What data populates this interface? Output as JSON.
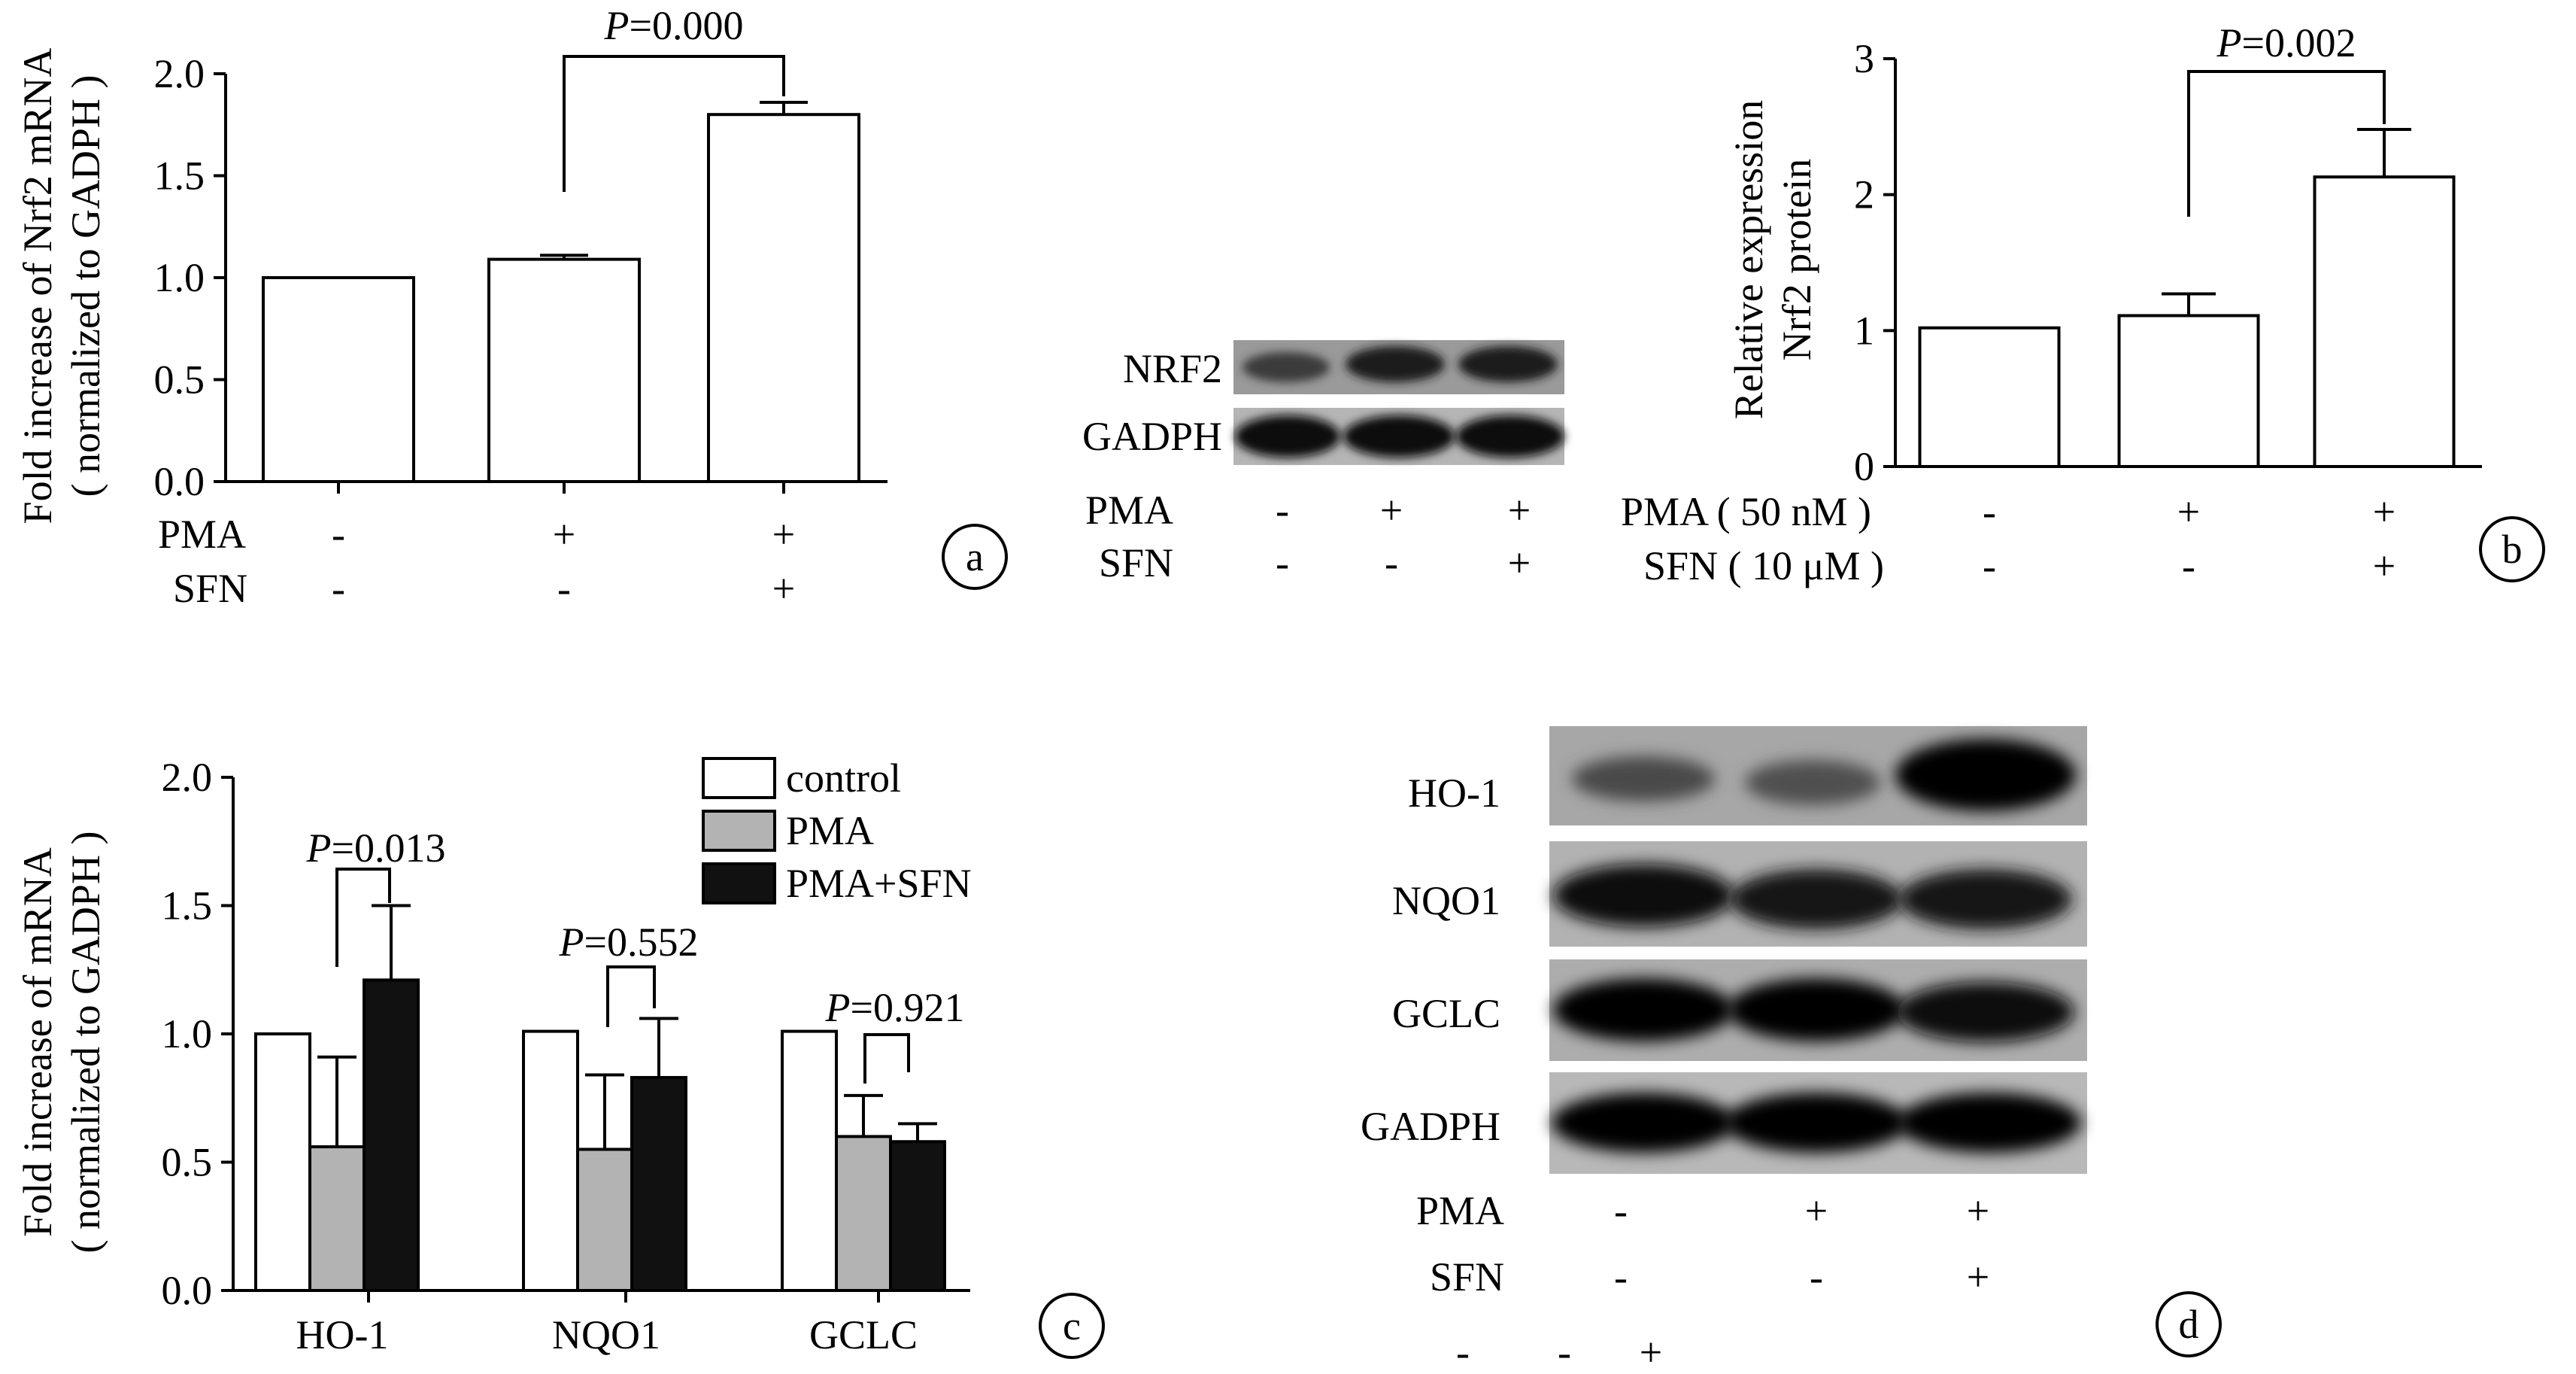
{
  "panel_a": {
    "panel_label": "a",
    "ylabel_line1": "Fold increase of  Nrf2 mRNA",
    "ylabel_line2": "( normalized to GADPH )",
    "yticks": [
      "0.0",
      "0.5",
      "1.0",
      "1.5",
      "2.0"
    ],
    "row1_label": "PMA",
    "row2_label": "SFN",
    "row1_marks": [
      "-",
      "+",
      "+"
    ],
    "row2_marks": [
      "-",
      "-",
      "+"
    ],
    "sig_p": "P",
    "sig_value": "=0.000"
  },
  "blot_nrf2": {
    "band_labels": [
      "NRF2",
      "GADPH"
    ],
    "row1_label": "PMA",
    "row2_label": "SFN",
    "row1_marks": [
      "-",
      "+",
      "+"
    ],
    "row2_marks": [
      "-",
      "-",
      "+"
    ]
  },
  "panel_b": {
    "panel_label": "b",
    "ylabel_line1": "Relative expression",
    "ylabel_line2": "Nrf2 protein",
    "yticks": [
      "0",
      "1",
      "2",
      "3"
    ],
    "row1_label": "PMA ( 50 nM )",
    "row2_label": "SFN ( 10 μM )",
    "row1_marks": [
      "-",
      "+",
      "+"
    ],
    "row2_marks": [
      "-",
      "-",
      "+"
    ],
    "sig_p": "P",
    "sig_value": "=0.002"
  },
  "panel_c": {
    "panel_label": "c",
    "ylabel_line1": "Fold increase of mRNA",
    "ylabel_line2": "( normalized to GADPH )",
    "yticks": [
      "0.0",
      "0.5",
      "1.0",
      "1.5",
      "2.0"
    ],
    "legend": [
      "control",
      "PMA",
      "PMA+SFN"
    ],
    "sig": [
      {
        "p": "P",
        "value": "=0.013"
      },
      {
        "p": "P",
        "value": "=0.552"
      },
      {
        "p": "P",
        "value": "=0.921"
      }
    ]
  },
  "panel_d": {
    "panel_label": "d",
    "band_labels": [
      "HO-1",
      "NQO1",
      "GCLC",
      "GADPH"
    ],
    "row1_label": "PMA",
    "row2_label": "SFN",
    "row1_marks": [
      "-",
      "+",
      "+"
    ],
    "row2_marks": [
      "-",
      "-",
      "+"
    ],
    "row3_marks": [
      "-",
      "-",
      "+"
    ]
  },
  "colors": {
    "control": "#ffffff",
    "pma": "#b3b3b3",
    "pma_sfn": "#111111",
    "axis": "#000000"
  },
  "chart_data": [
    {
      "type": "bar",
      "panel": "a",
      "categories": [
        "control",
        "PMA",
        "PMA+SFN"
      ],
      "values": [
        1.0,
        1.09,
        1.8
      ],
      "errors": [
        0,
        0.02,
        0.06
      ],
      "ylim": [
        0,
        2.0
      ],
      "ylabel": "Fold increase of  Nrf2 mRNA ( normalized to GADPH )"
    },
    {
      "type": "bar",
      "panel": "b",
      "categories": [
        "control",
        "PMA",
        "PMA+SFN"
      ],
      "values": [
        1.02,
        1.11,
        2.13
      ],
      "errors": [
        0,
        0.16,
        0.35
      ],
      "ylim": [
        0,
        3
      ],
      "ylabel": "Relative expression Nrf2 protein"
    },
    {
      "type": "bar",
      "panel": "c",
      "categories": [
        "HO-1",
        "NQO1",
        "GCLC"
      ],
      "series": [
        {
          "name": "control",
          "values": [
            1.0,
            1.01,
            1.01
          ],
          "errors": [
            0,
            0,
            0
          ]
        },
        {
          "name": "PMA",
          "values": [
            0.56,
            0.55,
            0.6
          ],
          "errors": [
            0.35,
            0.29,
            0.16
          ]
        },
        {
          "name": "PMA+SFN",
          "values": [
            1.21,
            0.83,
            0.58
          ],
          "errors": [
            0.29,
            0.23,
            0.07
          ]
        }
      ],
      "ylim": [
        0,
        2.0
      ],
      "ylabel": "Fold increase of mRNA ( normalized to GADPH )"
    }
  ]
}
